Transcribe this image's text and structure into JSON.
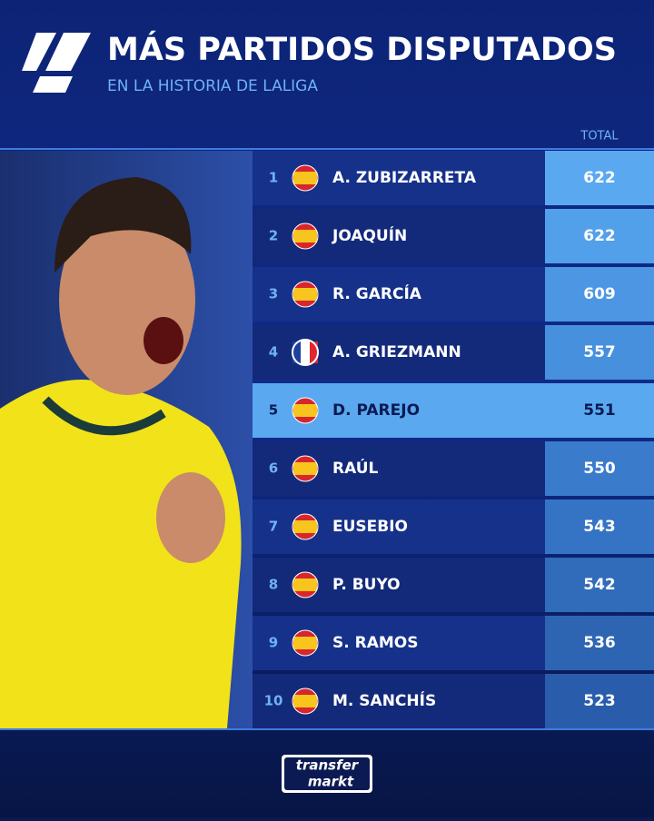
{
  "header": {
    "title": "MÁS PARTIDOS DISPUTADOS",
    "subtitle": "EN LA HISTORIA DE LALIGA"
  },
  "table": {
    "column_header": "TOTAL",
    "rows": [
      {
        "rank": 1,
        "name": "A. ZUBIZARRETA",
        "total": 622
      },
      {
        "rank": 2,
        "name": "JOAQUÍN",
        "total": 622
      },
      {
        "rank": 3,
        "name": "R. GARCÍA",
        "total": 609
      },
      {
        "rank": 4,
        "name": "A. GRIEZMANN",
        "total": 557
      },
      {
        "rank": 5,
        "name": "D. PAREJO",
        "total": 551
      },
      {
        "rank": 6,
        "name": "RAÚL",
        "total": 550
      },
      {
        "rank": 7,
        "name": "EUSEBIO",
        "total": 543
      },
      {
        "rank": 8,
        "name": "P. BUYO",
        "total": 542
      },
      {
        "rank": 9,
        "name": "S. RAMOS",
        "total": 536
      },
      {
        "rank": 10,
        "name": "M. SANCHÍS",
        "total": 523
      }
    ]
  },
  "footer": {
    "logo_top": "transfer",
    "logo_bottom": "markt"
  }
}
